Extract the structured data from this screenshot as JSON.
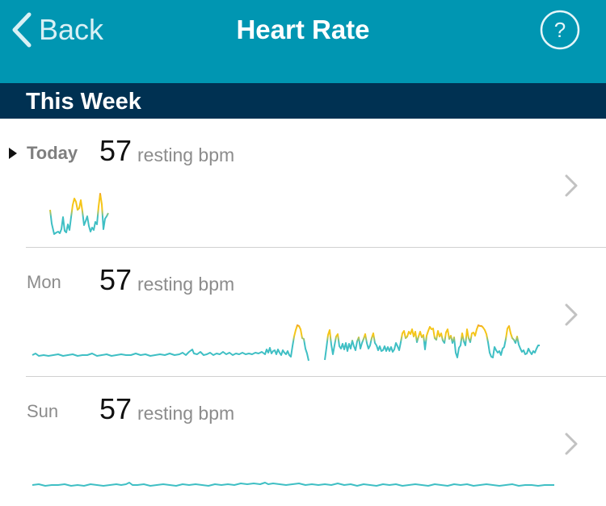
{
  "nav": {
    "back_label": "Back",
    "title": "Heart Rate",
    "help_label": "?"
  },
  "section": {
    "title": "This Week"
  },
  "days": [
    {
      "day": "Today",
      "bpm": "57",
      "unit": "resting bpm",
      "selected": true
    },
    {
      "day": "Mon",
      "bpm": "57",
      "unit": "resting bpm",
      "selected": false
    },
    {
      "day": "Sun",
      "bpm": "57",
      "unit": "resting bpm",
      "selected": false
    }
  ],
  "colors": {
    "navbar": "#0096b2",
    "section_header": "#003152",
    "line_low": "#3fbfc4",
    "line_mid": "#f5c518",
    "line_high": "#f0882d"
  },
  "icons": {
    "back": "chevron-left-icon",
    "help": "question-circle-icon",
    "row_arrow": "chevron-right-icon",
    "today_marker": "triangle-right-icon"
  }
}
